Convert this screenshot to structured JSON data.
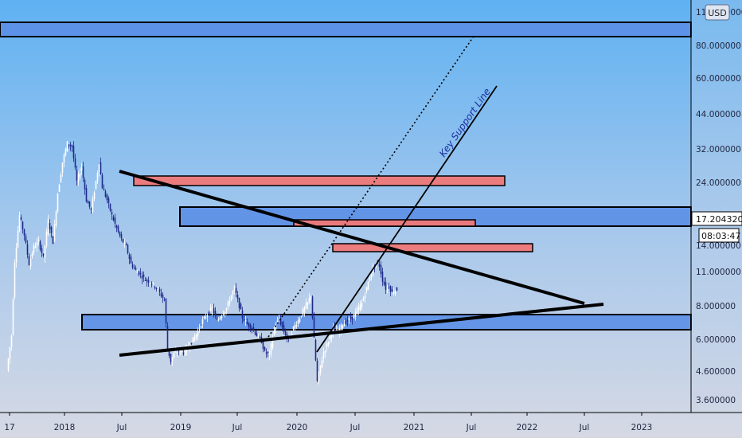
{
  "chart_data": {
    "type": "candlestick",
    "currency": "USD",
    "price_label": "17.204320",
    "countdown_label": "08:03:47",
    "annotation": "Key Support Line",
    "x_ticks": [
      "17",
      "2018",
      "Jul",
      "2019",
      "Jul",
      "2020",
      "Jul",
      "2021",
      "Jul",
      "2022",
      "Jul",
      "2023"
    ],
    "y_ticks": [
      "110.000000",
      "80.000000",
      "60.000000",
      "44.000000",
      "32.000000",
      "24.000000",
      "17.204320",
      "14.000000",
      "11.000000",
      "8.000000",
      "6.000000",
      "4.600000",
      "3.600000"
    ],
    "scale": "log",
    "price_range_approx": [
      3.5,
      115
    ],
    "last_price": 17.20432,
    "zones": [
      {
        "kind": "resistance",
        "color": "#5b8ee6",
        "price_range": [
          87,
          100
        ]
      },
      {
        "kind": "support",
        "color": "#5b8ee6",
        "price_range": [
          16.5,
          20
        ]
      },
      {
        "kind": "support",
        "color": "#5b8ee6",
        "price_range": [
          6.9,
          7.7
        ]
      },
      {
        "kind": "resistance",
        "color": "#ef7878",
        "price_range": [
          22.5,
          24
        ]
      },
      {
        "kind": "resistance",
        "color": "#ef7878",
        "price_range": [
          16.6,
          17.4
        ]
      },
      {
        "kind": "resistance",
        "color": "#ef7878",
        "price_range": [
          13.9,
          14.6
        ]
      }
    ],
    "trendlines": [
      {
        "name": "descending",
        "from": [
          "2018-07",
          25
        ],
        "to": [
          "2022-06",
          8.2
        ]
      },
      {
        "name": "ascending",
        "from": [
          "2018-07",
          5.1
        ],
        "to": [
          "2022-08",
          8.2
        ]
      },
      {
        "name": "key-support",
        "from": [
          "2020-03",
          5.3
        ],
        "to": [
          "2021-07",
          52
        ]
      },
      {
        "name": "dotted-channel",
        "from": [
          "2019-10",
          6.2
        ],
        "to": [
          "2021-06",
          90
        ]
      }
    ],
    "colors": {
      "up": "#ffffff",
      "down": "#1f2a8c",
      "zone_blue": "#5b8ee6",
      "zone_red": "#ef7878",
      "line": "#000000",
      "annotation": "#1c2fa0"
    }
  }
}
